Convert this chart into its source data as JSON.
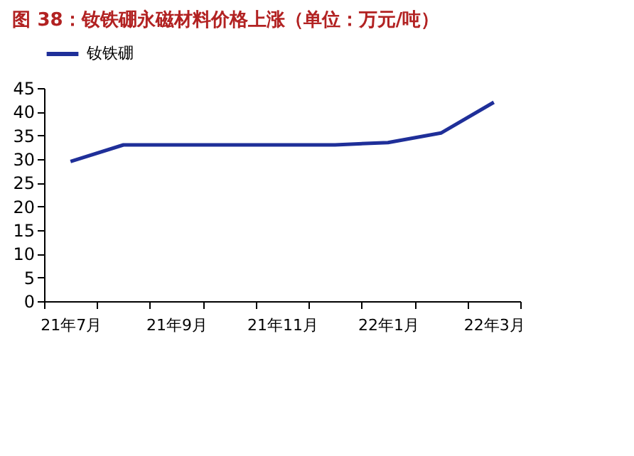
{
  "chart_data": {
    "type": "line",
    "title": "图 38：钕铁硼永磁材料价格上涨（单位：万元/吨）",
    "categories": [
      "21年7月",
      null,
      "21年9月",
      null,
      "21年11月",
      null,
      "22年1月",
      null,
      "22年3月"
    ],
    "series": [
      {
        "name": "钕铁硼",
        "color": "#1f2f99",
        "values": [
          29.5,
          33,
          33,
          33,
          33,
          33,
          33.5,
          35.5,
          42
        ]
      }
    ],
    "ylim": [
      0,
      45
    ],
    "yticks": [
      0,
      5,
      10,
      15,
      20,
      25,
      30,
      35,
      40,
      45
    ],
    "grid": false,
    "legend": "top",
    "marker": "none",
    "line_style": "solid"
  }
}
